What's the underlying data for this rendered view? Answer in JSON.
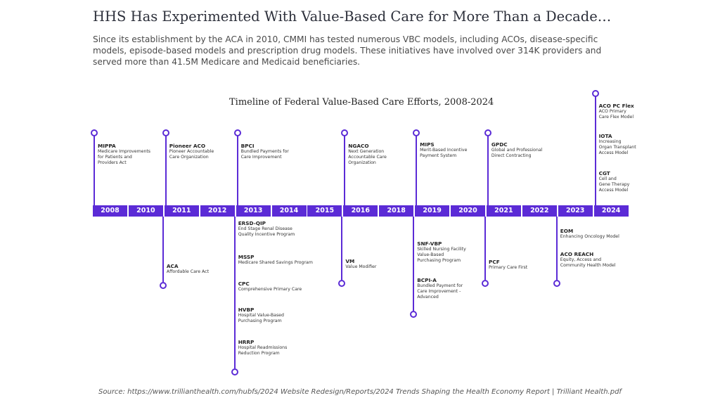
{
  "header": {
    "title": "HHS Has Experimented With Value-Based Care for More Than a Decade…",
    "subtitle": "Since its establishment by the ACA in 2010, CMMI has tested numerous VBC models, including ACOs, disease-specific models, episode-based models and prescription drug models. These initiatives have involved over 314K providers and served more than 41.5M Medicare and Medicaid beneficiaries."
  },
  "timeline": {
    "title": "Timeline of Federal Value-Based Care Efforts, 2008-2024",
    "years": [
      "2008",
      "2010",
      "2011",
      "2012",
      "2013",
      "2014",
      "2015",
      "2016",
      "2018",
      "2019",
      "2020",
      "2021",
      "2022",
      "2023",
      "2024"
    ],
    "above": [
      {
        "year_index": 0,
        "items": [
          {
            "title": "MIPPA",
            "desc": "Medicare Improvements\nfor Patients and\nProviders Act"
          }
        ]
      },
      {
        "year_index": 2,
        "items": [
          {
            "title": "Pioneer ACO",
            "desc": "Pioneer Accountable\nCare Organization"
          }
        ]
      },
      {
        "year_index": 4,
        "items": [
          {
            "title": "BPCI",
            "desc": "Bundled Payments for\nCare Improvement"
          }
        ]
      },
      {
        "year_index": 7,
        "items": [
          {
            "title": "NGACO",
            "desc": "Next Generation\nAccountable Care\nOrganization"
          }
        ]
      },
      {
        "year_index": 9,
        "items": [
          {
            "title": "MIPS",
            "desc": "Merit-Based Incentive\nPayment System"
          }
        ]
      },
      {
        "year_index": 11,
        "items": [
          {
            "title": "GPDC",
            "desc": "Global and Professional\nDirect Contracting"
          }
        ]
      },
      {
        "year_index": 14,
        "items": [
          {
            "title": "ACO PC Flex",
            "desc": "ACO Primary\nCare Flex Model"
          },
          {
            "title": "IOTA",
            "desc": "Increasing\nOrgan Transplant\nAccess Model"
          },
          {
            "title": "CGT",
            "desc": "Cell and\nGene Therapy\nAccess Model"
          }
        ]
      }
    ],
    "below": [
      {
        "year_index": 1,
        "items": [
          {
            "title": "ACA",
            "desc": "Affordable Care Act"
          }
        ]
      },
      {
        "year_index": 3,
        "items": [
          {
            "title": "ERSD-QIP",
            "desc": "End Stage Renal Disease\nQuality Incentive Program"
          },
          {
            "title": "MSSP",
            "desc": "Medicare Shared Savings Program"
          },
          {
            "title": "CPC",
            "desc": "Comprehensive Primary Care"
          },
          {
            "title": "HVBP",
            "desc": "Hospital Value-Based\nPurchasing Program"
          },
          {
            "title": "HRRP",
            "desc": "Hospital Readmissions\nReduction Program"
          }
        ]
      },
      {
        "year_index": 6,
        "items": [
          {
            "title": "VM",
            "desc": "Value Modifier"
          }
        ]
      },
      {
        "year_index": 8,
        "items": [
          {
            "title": "SNF-VBP",
            "desc": "Skilled Nursing Facility\nValue-Based\nPurchasing Program"
          },
          {
            "title": "BCPI-A",
            "desc": "Bundled Payment for\nCare Improvement -\nAdvanced"
          }
        ]
      },
      {
        "year_index": 10,
        "items": [
          {
            "title": "PCF",
            "desc": "Primary Care First"
          }
        ]
      },
      {
        "year_index": 12,
        "items": [
          {
            "title": "EOM",
            "desc": "Enhancing Oncology Model"
          },
          {
            "title": "ACO REACH",
            "desc": "Equity, Access and\nCommunity Health Model"
          }
        ]
      }
    ]
  },
  "footer": {
    "source": "Source: https://www.trillianthealth.com/hubfs/2024 Website Redesign/Reports/2024 Trends Shaping the Health Economy Report | Trilliant Health.pdf"
  },
  "colors": {
    "accent": "#5b2bd6"
  }
}
